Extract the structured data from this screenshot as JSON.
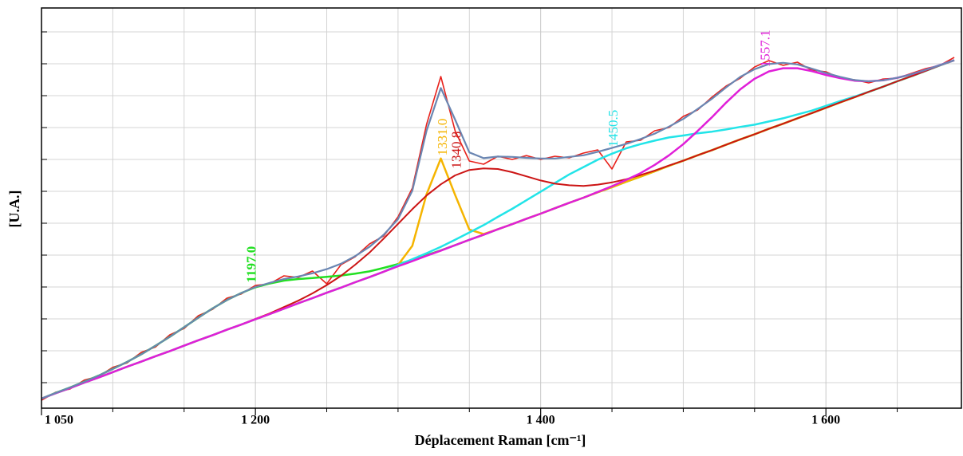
{
  "chart_data": {
    "type": "line",
    "x_label": "Déplacement Raman [cm⁻¹]",
    "y_label": "[U.A.]",
    "xlim": [
      1050,
      1695
    ],
    "ylim": [
      -0.8,
      11.75
    ],
    "xticks": [
      {
        "value": 1050,
        "label": "1 050"
      },
      {
        "value": 1200,
        "label": "1 200"
      },
      {
        "value": 1400,
        "label": "1 400"
      },
      {
        "value": 1600,
        "label": "1 600"
      }
    ],
    "x_minor_ticks": [
      1100,
      1150,
      1250,
      1300,
      1350,
      1450,
      1500,
      1550,
      1650
    ],
    "y_grid": [
      0,
      1,
      2,
      3,
      4,
      5,
      6,
      7,
      8,
      9,
      10,
      11
    ],
    "grid": true,
    "x": [
      1050,
      1060,
      1070,
      1080,
      1090,
      1100,
      1110,
      1120,
      1130,
      1140,
      1150,
      1160,
      1170,
      1180,
      1190,
      1200,
      1210,
      1220,
      1230,
      1240,
      1250,
      1260,
      1270,
      1280,
      1290,
      1300,
      1310,
      1320,
      1330,
      1340,
      1350,
      1360,
      1370,
      1380,
      1390,
      1400,
      1410,
      1420,
      1430,
      1440,
      1450,
      1460,
      1470,
      1480,
      1490,
      1500,
      1510,
      1520,
      1530,
      1540,
      1550,
      1560,
      1570,
      1580,
      1590,
      1600,
      1610,
      1620,
      1630,
      1640,
      1650,
      1660,
      1670,
      1680,
      1690
    ],
    "series": [
      {
        "color": "#e8211b",
        "width": 1.6,
        "values": [
          -0.55,
          -0.3,
          -0.2,
          0.08,
          0.2,
          0.48,
          0.62,
          0.95,
          1.12,
          1.5,
          1.7,
          2.1,
          2.3,
          2.65,
          2.78,
          3.05,
          3.1,
          3.35,
          3.3,
          3.5,
          3.1,
          3.7,
          3.95,
          4.35,
          4.6,
          5.2,
          6.1,
          8.1,
          9.6,
          7.9,
          6.95,
          6.85,
          7.1,
          7.0,
          7.12,
          7.0,
          7.1,
          7.05,
          7.2,
          7.3,
          6.7,
          7.55,
          7.6,
          7.9,
          8.0,
          8.35,
          8.55,
          8.95,
          9.3,
          9.55,
          9.9,
          10.1,
          9.95,
          10.05,
          9.8,
          9.75,
          9.55,
          9.5,
          9.4,
          9.52,
          9.55,
          9.7,
          9.85,
          9.95,
          10.2
        ]
      },
      {
        "color": "#22e022",
        "width": 2.5,
        "values": [
          -0.5,
          -0.32,
          -0.15,
          0.03,
          0.22,
          0.43,
          0.65,
          0.89,
          1.16,
          1.44,
          1.74,
          2.04,
          2.33,
          2.59,
          2.81,
          2.99,
          3.11,
          3.2,
          3.25,
          3.28,
          3.32,
          3.36,
          3.42,
          3.49,
          3.6,
          3.72,
          3.85,
          4.0,
          4.15,
          4.31,
          4.48,
          4.64,
          4.81,
          4.97,
          5.14,
          5.3,
          5.47,
          5.64,
          5.8,
          5.97,
          6.13,
          6.3,
          6.46,
          6.63,
          6.8,
          6.96,
          7.13,
          7.29,
          7.46,
          7.63,
          7.79,
          7.96,
          8.12,
          8.29,
          8.45,
          8.62,
          8.79,
          8.95,
          9.12,
          9.28,
          9.45,
          9.61,
          9.78,
          9.95,
          10.11
        ],
        "peak": {
          "value": 1197.0,
          "label": "1197.0"
        }
      },
      {
        "color": "#f5b400",
        "width": 2.5,
        "values": [
          -0.5,
          -0.33,
          -0.17,
          0.0,
          0.16,
          0.33,
          0.5,
          0.66,
          0.83,
          0.99,
          1.16,
          1.33,
          1.49,
          1.66,
          1.82,
          1.99,
          2.15,
          2.32,
          2.49,
          2.65,
          2.82,
          2.98,
          3.15,
          3.31,
          3.48,
          3.69,
          4.29,
          5.91,
          7.03,
          5.89,
          4.8,
          4.66,
          4.81,
          4.97,
          5.14,
          5.3,
          5.47,
          5.64,
          5.8,
          5.97,
          6.13,
          6.3,
          6.46,
          6.63,
          6.8,
          6.96,
          7.13,
          7.29,
          7.46,
          7.63,
          7.79,
          7.96,
          8.12,
          8.29,
          8.45,
          8.62,
          8.79,
          8.95,
          9.12,
          9.28,
          9.45,
          9.61,
          9.78,
          9.95,
          10.11
        ],
        "peak": {
          "value": 1331.0,
          "label": "1331.0"
        }
      },
      {
        "color": "#22e4e8",
        "width": 2.5,
        "values": [
          -0.5,
          -0.33,
          -0.17,
          0.0,
          0.16,
          0.33,
          0.5,
          0.66,
          0.83,
          0.99,
          1.16,
          1.33,
          1.49,
          1.66,
          1.82,
          1.99,
          2.15,
          2.32,
          2.49,
          2.65,
          2.82,
          2.98,
          3.15,
          3.31,
          3.48,
          3.69,
          3.87,
          4.06,
          4.26,
          4.48,
          4.71,
          4.94,
          5.2,
          5.45,
          5.72,
          5.99,
          6.26,
          6.53,
          6.76,
          6.99,
          7.18,
          7.35,
          7.48,
          7.59,
          7.69,
          7.75,
          7.82,
          7.87,
          7.94,
          8.02,
          8.09,
          8.19,
          8.29,
          8.41,
          8.53,
          8.68,
          8.83,
          8.97,
          9.12,
          9.28,
          9.45,
          9.61,
          9.78,
          9.95,
          10.11
        ],
        "peak": {
          "value": 1450.5,
          "label": "1450.5"
        }
      },
      {
        "color": "#cc1414",
        "width": 2,
        "values": [
          -0.5,
          -0.33,
          -0.17,
          0.0,
          0.16,
          0.33,
          0.5,
          0.66,
          0.83,
          0.99,
          1.16,
          1.33,
          1.49,
          1.66,
          1.82,
          2.0,
          2.17,
          2.37,
          2.57,
          2.8,
          3.06,
          3.35,
          3.7,
          4.08,
          4.52,
          4.98,
          5.44,
          5.87,
          6.22,
          6.5,
          6.67,
          6.72,
          6.7,
          6.6,
          6.47,
          6.34,
          6.24,
          6.19,
          6.17,
          6.21,
          6.28,
          6.38,
          6.51,
          6.65,
          6.81,
          6.96,
          7.13,
          7.29,
          7.46,
          7.63,
          7.79,
          7.96,
          8.12,
          8.29,
          8.45,
          8.62,
          8.79,
          8.95,
          9.12,
          9.28,
          9.45,
          9.61,
          9.78,
          9.95,
          10.11
        ],
        "peak": {
          "value": 1340.8,
          "label": "1340.8"
        }
      },
      {
        "color": "#e01fd8",
        "width": 2.5,
        "values": [
          -0.5,
          -0.33,
          -0.17,
          0.0,
          0.16,
          0.33,
          0.5,
          0.66,
          0.83,
          0.99,
          1.16,
          1.33,
          1.49,
          1.66,
          1.82,
          1.99,
          2.15,
          2.32,
          2.49,
          2.65,
          2.82,
          2.98,
          3.15,
          3.31,
          3.48,
          3.65,
          3.81,
          3.98,
          4.14,
          4.31,
          4.48,
          4.64,
          4.81,
          4.97,
          5.14,
          5.3,
          5.47,
          5.64,
          5.8,
          5.98,
          6.16,
          6.36,
          6.57,
          6.83,
          7.13,
          7.48,
          7.89,
          8.32,
          8.78,
          9.2,
          9.53,
          9.76,
          9.86,
          9.86,
          9.77,
          9.65,
          9.55,
          9.47,
          9.45,
          9.48,
          9.56,
          9.67,
          9.81,
          9.96,
          10.11
        ],
        "peak": {
          "value": 1557.1,
          "label": "1557.1"
        }
      },
      {
        "color": "#6a86b2",
        "width": 2.2,
        "values": [
          -0.5,
          -0.32,
          -0.15,
          0.03,
          0.22,
          0.43,
          0.65,
          0.89,
          1.16,
          1.44,
          1.74,
          2.04,
          2.33,
          2.59,
          2.81,
          3.0,
          3.13,
          3.25,
          3.33,
          3.43,
          3.56,
          3.73,
          3.97,
          4.26,
          4.64,
          5.13,
          6.02,
          7.9,
          9.24,
          8.25,
          7.22,
          7.04,
          7.09,
          7.08,
          7.05,
          7.03,
          7.03,
          7.08,
          7.13,
          7.24,
          7.36,
          7.49,
          7.64,
          7.81,
          8.03,
          8.27,
          8.58,
          8.9,
          9.26,
          9.59,
          9.83,
          9.99,
          10.03,
          9.98,
          9.85,
          9.71,
          9.59,
          9.49,
          9.45,
          9.48,
          9.56,
          9.67,
          9.81,
          9.96,
          10.11
        ]
      }
    ]
  }
}
